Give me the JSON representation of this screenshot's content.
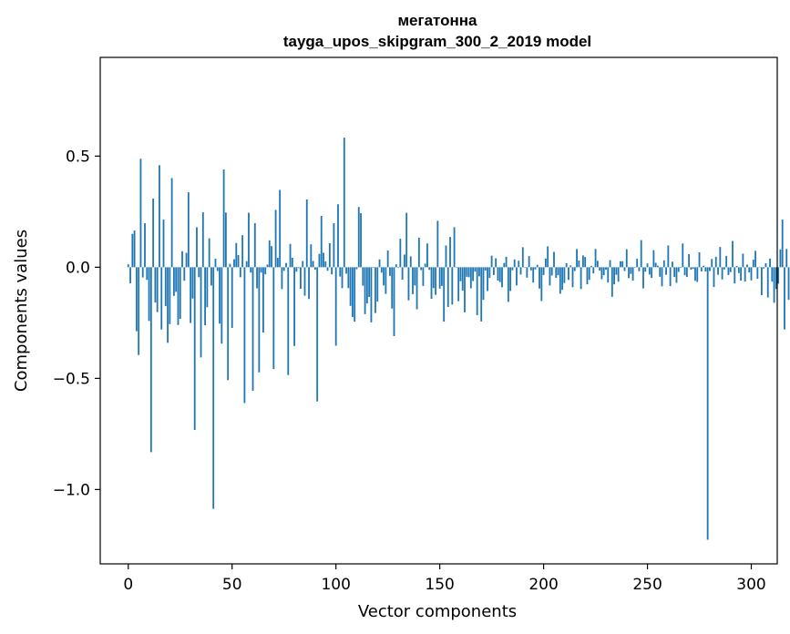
{
  "chart_data": {
    "type": "bar",
    "title": "мегатонна",
    "subtitle": "tayga_upos_skipgram_300_2_2019 model",
    "xlabel": "Vector components",
    "ylabel": "Components values",
    "xlim": [
      -13.5,
      312.5
    ],
    "ylim": [
      -1.3346,
      0.9441
    ],
    "xticks": [
      0,
      50,
      100,
      150,
      200,
      250,
      300
    ],
    "xtick_labels": [
      "0",
      "50",
      "100",
      "150",
      "200",
      "250",
      "300"
    ],
    "yticks": [
      -1.0,
      -0.5,
      0.0,
      0.5
    ],
    "ytick_labels": [
      "−1.0",
      "−0.5",
      "0.0",
      "0.5"
    ],
    "grid": false,
    "bar_color": "#1f77b4",
    "values": [
      0.013,
      -0.072,
      0.15,
      0.165,
      -0.288,
      -0.395,
      0.488,
      -0.046,
      0.198,
      -0.057,
      -0.242,
      -0.832,
      0.309,
      -0.159,
      -0.202,
      0.459,
      -0.28,
      0.214,
      -0.175,
      -0.34,
      -0.256,
      0.401,
      -0.129,
      -0.111,
      -0.26,
      -0.232,
      0.072,
      -0.061,
      0.065,
      0.337,
      -0.251,
      -0.141,
      -0.732,
      0.18,
      -0.045,
      -0.406,
      0.247,
      -0.261,
      -0.18,
      0.13,
      -0.082,
      -1.087,
      0.038,
      -0.017,
      -0.254,
      -0.344,
      0.44,
      0.246,
      -0.508,
      0.015,
      -0.273,
      0.036,
      0.109,
      0.055,
      -0.045,
      0.144,
      -0.611,
      0.027,
      0.245,
      -0.024,
      -0.556,
      0.198,
      -0.095,
      -0.473,
      -0.024,
      -0.294,
      -0.032,
      0.012,
      0.121,
      0.095,
      -0.458,
      0.258,
      0.042,
      0.348,
      -0.098,
      -0.016,
      0.019,
      -0.485,
      0.105,
      0.043,
      -0.354,
      -0.02,
      -0.004,
      -0.097,
      0.028,
      -0.128,
      0.305,
      -0.143,
      0.103,
      0.028,
      -0.011,
      -0.604,
      0.06,
      0.231,
      0.065,
      0.026,
      -0.016,
      0.108,
      -0.032,
      0.198,
      -0.353,
      0.283,
      -0.042,
      -0.094,
      0.583,
      -0.029,
      -0.094,
      -0.174,
      -0.224,
      -0.245,
      -0.009,
      0.271,
      0.243,
      -0.083,
      -0.211,
      -0.163,
      -0.134,
      -0.248,
      -0.003,
      -0.206,
      -0.154,
      0.035,
      -0.024,
      -0.082,
      -0.12,
      0.075,
      -0.039,
      -0.186,
      -0.31,
      0.013,
      -0.003,
      0.128,
      -0.056,
      0.057,
      0.245,
      -0.149,
      0.049,
      -0.121,
      -0.082,
      -0.189,
      0.133,
      -0.013,
      -0.084,
      0.016,
      0.107,
      -0.012,
      -0.142,
      -0.094,
      -0.124,
      0.209,
      -0.096,
      -0.084,
      -0.245,
      0.098,
      -0.179,
      0.136,
      -0.168,
      0.18,
      -0.002,
      -0.153,
      -0.063,
      -0.105,
      -0.203,
      -0.043,
      -0.045,
      -0.095,
      -0.062,
      -0.02,
      -0.216,
      -0.041,
      -0.244,
      -0.147,
      -0.015,
      -0.107,
      -0.048,
      0.052,
      -0.035,
      0.04,
      -0.06,
      -0.067,
      -0.09,
      0.019,
      0.047,
      -0.156,
      -0.107,
      -0.014,
      0.035,
      -0.082,
      0.029,
      -0.033,
      0.09,
      -0.002,
      -0.047,
      0.05,
      -0.014,
      -0.069,
      -0.01,
      0.011,
      -0.096,
      -0.152,
      -0.035,
      0.039,
      0.094,
      -0.082,
      -0.037,
      0.069,
      -0.048,
      -0.036,
      -0.119,
      -0.102,
      -0.071,
      0.018,
      -0.057,
      0.008,
      -0.09,
      -0.017,
      0.082,
      0.03,
      -0.098,
      0.053,
      0.046,
      -0.077,
      -0.057,
      0.006,
      -0.028,
      0.082,
      0.029,
      -0.015,
      -0.054,
      -0.036,
      -0.011,
      -0.069,
      0.032,
      -0.133,
      -0.077,
      -0.034,
      -0.065,
      0.027,
      0.027,
      -0.017,
      0.081,
      -0.049,
      -0.03,
      -0.06,
      -0.002,
      0.038,
      -0.018,
      0.122,
      -0.095,
      -0.02,
      0.017,
      -0.033,
      -0.048,
      0.077,
      0.02,
      0.007,
      -0.043,
      -0.086,
      0.031,
      -0.034,
      0.098,
      -0.085,
      0.025,
      -0.044,
      -0.07,
      -0.021,
      -0.003,
      0.107,
      -0.036,
      -0.044,
      0.059,
      -0.011,
      -0.007,
      -0.061,
      -0.066,
      0.067,
      -0.019,
      0.007,
      -0.019,
      -1.226,
      -0.017,
      0.037,
      -0.089,
      0.047,
      -0.034,
      0.091,
      -0.055,
      -0.01,
      0.051,
      -0.035,
      -0.022,
      0.118,
      -0.073,
      0.006,
      -0.026,
      -0.06,
      0.061,
      -0.064,
      0.012,
      -0.023,
      -0.059,
      0.034,
      0.074,
      -0.052,
      0.002,
      -0.126,
      -0.006,
      0.018,
      -0.136,
      0.039,
      -0.065,
      -0.16,
      -0.098,
      -0.074,
      0.08,
      0.214,
      -0.28,
      0.082,
      -0.146
    ]
  }
}
